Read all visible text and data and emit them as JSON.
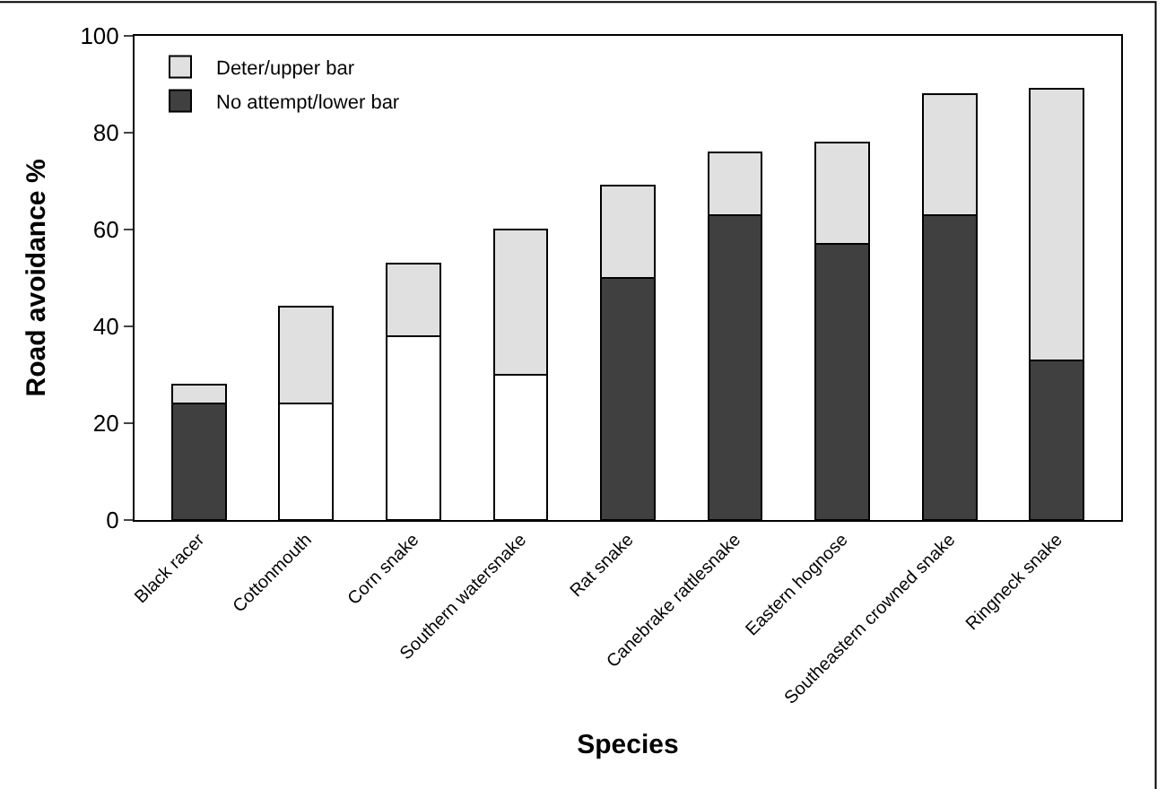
{
  "chart_data": {
    "type": "bar",
    "stacked": true,
    "xlabel": "Species",
    "ylabel": "Road avoidance %",
    "categories": [
      "Black racer",
      "Cottonmouth",
      "Corn snake",
      "Southern watersnake",
      "Rat snake",
      "Canebrake rattlesnake",
      "Eastern hognose",
      "Southeastern crowned snake",
      "Ringneck snake"
    ],
    "series": [
      {
        "name": "No attempt/lower bar",
        "colors": [
          "#404040",
          "#ffffff",
          "#ffffff",
          "#ffffff",
          "#404040",
          "#404040",
          "#404040",
          "#404040",
          "#404040"
        ],
        "values": [
          24,
          24,
          38,
          30,
          50,
          63,
          57,
          63,
          33
        ]
      },
      {
        "name": "Deter/upper bar",
        "color": "#e0e0e0",
        "values": [
          4,
          20,
          15,
          30,
          19,
          13,
          21,
          25,
          56
        ]
      }
    ],
    "ylim": [
      0,
      100
    ],
    "yticks": [
      0,
      20,
      40,
      60,
      80,
      100
    ],
    "legend": "top left"
  }
}
